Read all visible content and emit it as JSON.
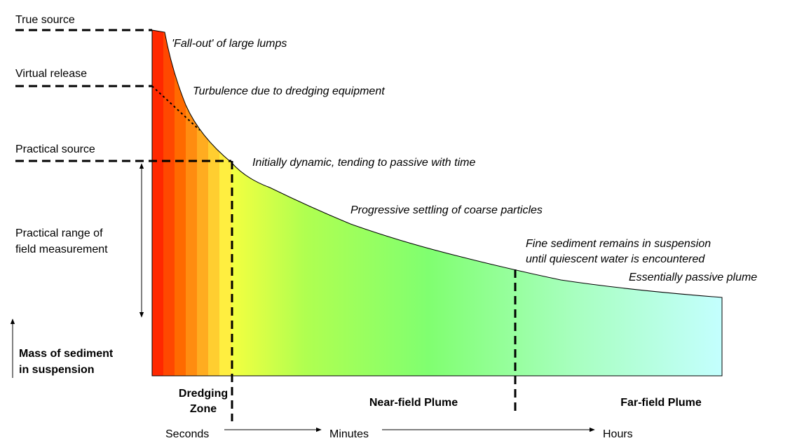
{
  "levels": {
    "true_source": "True source",
    "virtual_release": "Virtual release",
    "practical_source": "Practical source",
    "practical_range": [
      "Practical range of",
      "field measurement"
    ],
    "axis": [
      "Mass of sediment",
      "in suspension"
    ]
  },
  "annotations": {
    "fall_out": "'Fall-out' of large lumps",
    "turbulence": "Turbulence due to dredging equipment",
    "initially": "Initially dynamic, tending to passive with time",
    "progressive": "Progressive settling of coarse particles",
    "fine": [
      "Fine sediment remains in suspension",
      "until quiescent water is encountered"
    ],
    "passive": "Essentially passive plume"
  },
  "zones": {
    "dredging": [
      "Dredging",
      "Zone"
    ],
    "near": "Near-field Plume",
    "far": "Far-field Plume"
  },
  "timescale": [
    "Seconds",
    "Minutes",
    "Hours"
  ]
}
